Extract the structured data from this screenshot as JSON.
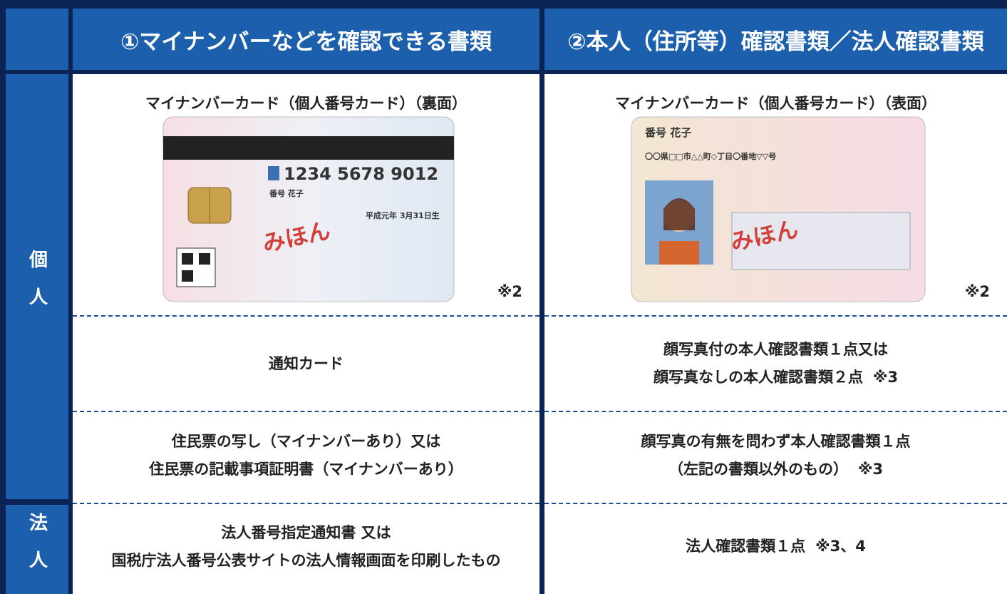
{
  "header": {
    "columns": [
      "①マイナンバーなどを確認できる書類",
      "②本人（住所等）確認書類／法人確認書類"
    ]
  },
  "sections": [
    {
      "label": "個人",
      "rows": [
        {
          "left": {
            "title": "マイナンバーカード（個人番号カード）（裏面）",
            "note": "※2",
            "card": {
              "number": "1234 5678 9012",
              "name": "番号 花子",
              "sample": "みほん",
              "birth": "平成元年 3月31日生"
            }
          },
          "right": {
            "title": "マイナンバーカード（個人番号カード）（表面）",
            "note": "※2",
            "card": {
              "name": "番号 花子",
              "address": "〇〇県□□市△△町◇丁目〇番地▽▽号",
              "sample": "みほん"
            }
          }
        },
        {
          "left": {
            "lines": [
              "通知カード"
            ]
          },
          "right": {
            "lines": [
              "顔写真付の本人確認書類１点又は",
              "顔写真なしの本人確認書類２点"
            ],
            "note": "※3"
          }
        },
        {
          "left": {
            "lines": [
              "住民票の写し（マイナンバーあり）又は",
              "住民票の記載事項証明書（マイナンバーあり）"
            ]
          },
          "right": {
            "lines": [
              "顔写真の有無を問わず本人確認書類１点",
              "（左記の書類以外のもの）"
            ],
            "note": "※3"
          }
        }
      ]
    },
    {
      "label": "法人",
      "rows": [
        {
          "left": {
            "lines": [
              "法人番号指定通知書 又は",
              "国税庁法人番号公表サイトの法人情報画面を印刷したもの"
            ]
          },
          "right": {
            "lines": [
              "法人確認書類１点"
            ],
            "note": "※3、4"
          }
        }
      ]
    }
  ]
}
